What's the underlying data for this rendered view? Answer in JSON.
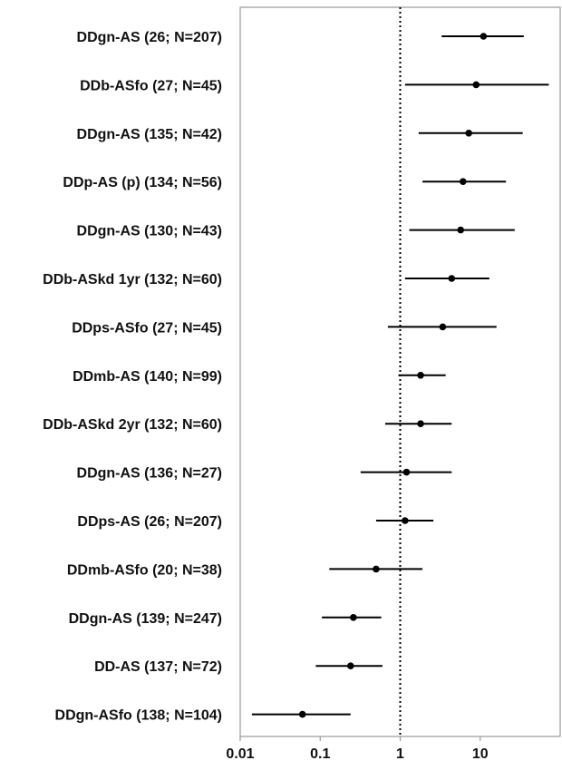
{
  "chart_data": {
    "type": "scatter",
    "subtype": "forest-plot",
    "title": "",
    "xlabel": "",
    "ylabel": "",
    "x_scale": "log",
    "xlim": [
      0.01,
      100
    ],
    "x_ticks": [
      0.01,
      0.1,
      1,
      10
    ],
    "x_tick_labels": [
      "0.01",
      "0.1",
      "1",
      "10"
    ],
    "reference_line": {
      "x": 1,
      "style": "dotted"
    },
    "grid": false,
    "legend": "none",
    "colors": {
      "marker": "#000000",
      "line": "#000000",
      "frame": "#9a9a9a",
      "background": "#ffffff"
    },
    "rows": [
      {
        "label": "DDgn-AS (26; N=207)",
        "estimate": 11,
        "ci": [
          3.3,
          35
        ]
      },
      {
        "label": "DDb-ASfo (27; N=45)",
        "estimate": 8.9,
        "ci": [
          1.15,
          72
        ]
      },
      {
        "label": "DDgn-AS (135; N=42)",
        "estimate": 7.2,
        "ci": [
          1.7,
          34
        ]
      },
      {
        "label": "DDp-AS (p) (134; N=56)",
        "estimate": 6.1,
        "ci": [
          1.9,
          21
        ]
      },
      {
        "label": "DDgn-AS (130; N=43)",
        "estimate": 5.7,
        "ci": [
          1.3,
          27
        ]
      },
      {
        "label": "DDb-ASkd 1yr (132; N=60)",
        "estimate": 4.4,
        "ci": [
          1.15,
          13
        ]
      },
      {
        "label": "DDps-ASfo (27; N=45)",
        "estimate": 3.4,
        "ci": [
          0.7,
          16
        ]
      },
      {
        "label": "DDmb-AS (140; N=99)",
        "estimate": 1.8,
        "ci": [
          0.95,
          3.7
        ]
      },
      {
        "label": "DDb-ASkd 2yr (132; N=60)",
        "estimate": 1.8,
        "ci": [
          0.65,
          4.4
        ]
      },
      {
        "label": "DDgn-AS (136; N=27)",
        "estimate": 1.2,
        "ci": [
          0.32,
          4.4
        ]
      },
      {
        "label": "DDps-AS (26; N=207)",
        "estimate": 1.15,
        "ci": [
          0.5,
          2.6
        ]
      },
      {
        "label": "DDmb-ASfo (20; N=38)",
        "estimate": 0.5,
        "ci": [
          0.13,
          1.9
        ]
      },
      {
        "label": "DDgn-AS (139; N=247)",
        "estimate": 0.26,
        "ci": [
          0.105,
          0.58
        ]
      },
      {
        "label": "DD-AS (137; N=72)",
        "estimate": 0.24,
        "ci": [
          0.088,
          0.6
        ]
      },
      {
        "label": "DDgn-ASfo (138; N=104)",
        "estimate": 0.06,
        "ci": [
          0.014,
          0.24
        ]
      }
    ]
  }
}
